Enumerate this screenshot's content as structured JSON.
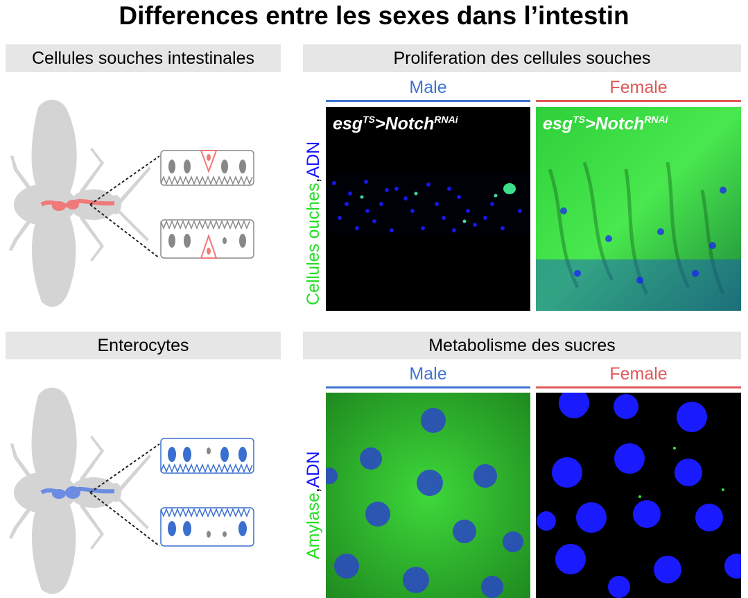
{
  "title": "Differences entre les sexes dans l’intestin",
  "row1": {
    "left_header": "Cellules souches intestinales",
    "right_header": "Proliferation des cellules souches",
    "male_label": "Male",
    "female_label": "Female",
    "ylabel_part1": "Cellules ouches",
    "ylabel_sep": ",",
    "ylabel_part2": "ADN",
    "genotype": {
      "base1": "esg",
      "sup1": "TS",
      "base2": ">Notch",
      "sup2": "RNAi"
    }
  },
  "row2": {
    "left_header": "Enterocytes",
    "right_header": "Metabolisme des sucres",
    "male_label": "Male",
    "female_label": "Female",
    "ylabel_part1": "Amylase",
    "ylabel_sep": ",",
    "ylabel_part2": "ADN"
  },
  "colors": {
    "male": "#3f74d2",
    "female": "#e05858",
    "fly": "#d4d4d4",
    "stem_cell": "#f07a7a",
    "enterocyte": "#3a6fcf",
    "green_stain": "#22e022",
    "dna_stain": "#1a1aff"
  }
}
